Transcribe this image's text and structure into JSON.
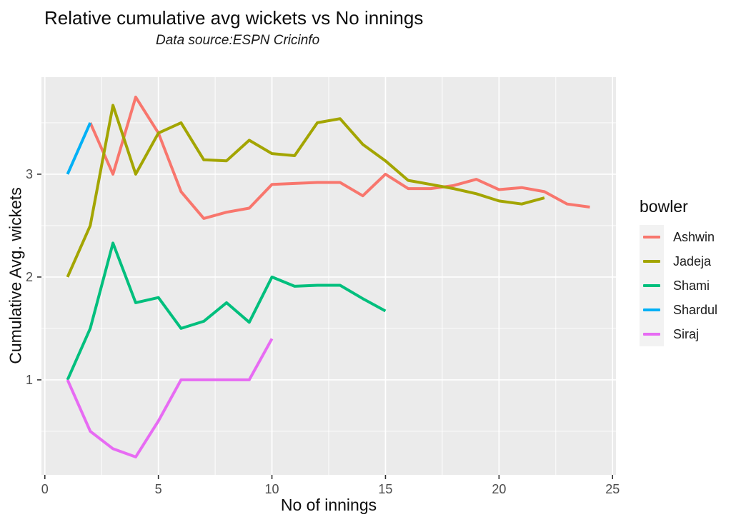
{
  "chart_data": {
    "type": "line",
    "title": "Relative cumulative avg wickets vs No innings",
    "subtitle": "Data source:ESPN Cricinfo",
    "xlabel": "No of innings",
    "ylabel": "Cumulative Avg. wickets",
    "legend_title": "bowler",
    "legend_position": "right",
    "grid": true,
    "panel_bg": "#EBEBEB",
    "grid_color": "#FFFFFF",
    "tick_label_color": "#4D4D4D",
    "tick_mark_color": "#333333",
    "xlim": [
      -0.15,
      25.15
    ],
    "ylim": [
      0.076,
      3.944
    ],
    "x_ticks": [
      0,
      5,
      10,
      15,
      20,
      25
    ],
    "x_minor_ticks": [
      2.5,
      7.5,
      12.5,
      17.5,
      22.5
    ],
    "y_ticks": [
      1,
      2,
      3
    ],
    "y_minor_ticks": [
      0.5,
      1.5,
      2.5,
      3.5
    ],
    "series": [
      {
        "name": "Ashwin",
        "color": "#F8766D",
        "points": [
          [
            2,
            3.5
          ],
          [
            3,
            3.0
          ],
          [
            4,
            3.75
          ],
          [
            5,
            3.4
          ],
          [
            6,
            2.83
          ],
          [
            7,
            2.57
          ],
          [
            8,
            2.63
          ],
          [
            9,
            2.67
          ],
          [
            10,
            2.9
          ],
          [
            11,
            2.91
          ],
          [
            12,
            2.92
          ],
          [
            13,
            2.92
          ],
          [
            14,
            2.79
          ],
          [
            15,
            3.0
          ],
          [
            16,
            2.86
          ],
          [
            17,
            2.86
          ],
          [
            18,
            2.89
          ],
          [
            19,
            2.95
          ],
          [
            20,
            2.85
          ],
          [
            21,
            2.87
          ],
          [
            22,
            2.83
          ],
          [
            23,
            2.71
          ],
          [
            24,
            2.68
          ]
        ]
      },
      {
        "name": "Jadeja",
        "color": "#A3A500",
        "points": [
          [
            1,
            2.0
          ],
          [
            2,
            2.5
          ],
          [
            3,
            3.67
          ],
          [
            4,
            3.0
          ],
          [
            5,
            3.4
          ],
          [
            6,
            3.5
          ],
          [
            7,
            3.14
          ],
          [
            8,
            3.13
          ],
          [
            9,
            3.33
          ],
          [
            10,
            3.2
          ],
          [
            11,
            3.18
          ],
          [
            12,
            3.5
          ],
          [
            13,
            3.54
          ],
          [
            14,
            3.29
          ],
          [
            15,
            3.13
          ],
          [
            16,
            2.94
          ],
          [
            17,
            2.9
          ],
          [
            18,
            2.86
          ],
          [
            19,
            2.81
          ],
          [
            20,
            2.74
          ],
          [
            21,
            2.71
          ],
          [
            22,
            2.77
          ]
        ]
      },
      {
        "name": "Shami",
        "color": "#00BF7D",
        "points": [
          [
            1,
            1.0
          ],
          [
            2,
            1.5
          ],
          [
            3,
            2.33
          ],
          [
            4,
            1.75
          ],
          [
            5,
            1.8
          ],
          [
            6,
            1.5
          ],
          [
            7,
            1.57
          ],
          [
            8,
            1.75
          ],
          [
            9,
            1.56
          ],
          [
            10,
            2.0
          ],
          [
            11,
            1.91
          ],
          [
            12,
            1.92
          ],
          [
            13,
            1.92
          ],
          [
            14,
            1.79
          ],
          [
            15,
            1.67
          ]
        ]
      },
      {
        "name": "Shardul",
        "color": "#00B0F6",
        "points": [
          [
            1,
            3.0
          ],
          [
            2,
            3.5
          ]
        ]
      },
      {
        "name": "Siraj",
        "color": "#E76BF3",
        "points": [
          [
            1,
            1.0
          ],
          [
            2,
            0.5
          ],
          [
            3,
            0.33
          ],
          [
            4,
            0.25
          ],
          [
            5,
            0.6
          ],
          [
            6,
            1.0
          ],
          [
            7,
            1.0
          ],
          [
            8,
            1.0
          ],
          [
            9,
            1.0
          ],
          [
            10,
            1.4
          ]
        ]
      }
    ]
  }
}
